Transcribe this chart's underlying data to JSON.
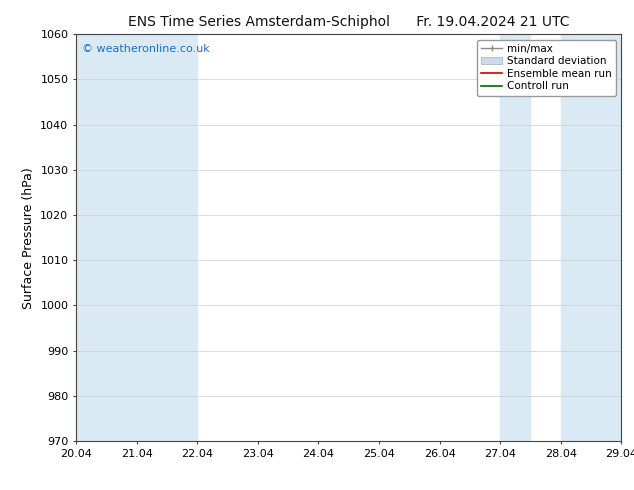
{
  "title_left": "ENS Time Series Amsterdam-Schiphol",
  "title_right": "Fr. 19.04.2024 21 UTC",
  "ylabel": "Surface Pressure (hPa)",
  "ylim": [
    970,
    1060
  ],
  "yticks": [
    970,
    980,
    990,
    1000,
    1010,
    1020,
    1030,
    1040,
    1050,
    1060
  ],
  "xlim_start": 0,
  "xlim_end": 9,
  "xtick_positions": [
    0,
    1,
    2,
    3,
    4,
    5,
    6,
    7,
    8,
    9
  ],
  "xtick_labels": [
    "20.04",
    "21.04",
    "22.04",
    "23.04",
    "24.04",
    "25.04",
    "26.04",
    "27.04",
    "28.04",
    "29.04"
  ],
  "shaded_bands": [
    {
      "x_start": 0.0,
      "x_end": 1.0
    },
    {
      "x_start": 1.0,
      "x_end": 2.0
    },
    {
      "x_start": 7.0,
      "x_end": 7.5
    },
    {
      "x_start": 8.0,
      "x_end": 9.0
    }
  ],
  "band_color": "#daeaf5",
  "watermark_text": "© weatheronline.co.uk",
  "watermark_color": "#1a6fc4",
  "background_color": "#ffffff",
  "plot_bg_color": "#ffffff",
  "grid_color": "#cccccc",
  "tick_label_fontsize": 8,
  "axis_label_fontsize": 9,
  "title_fontsize": 10,
  "legend_fontsize": 7.5,
  "spine_color": "#444444"
}
